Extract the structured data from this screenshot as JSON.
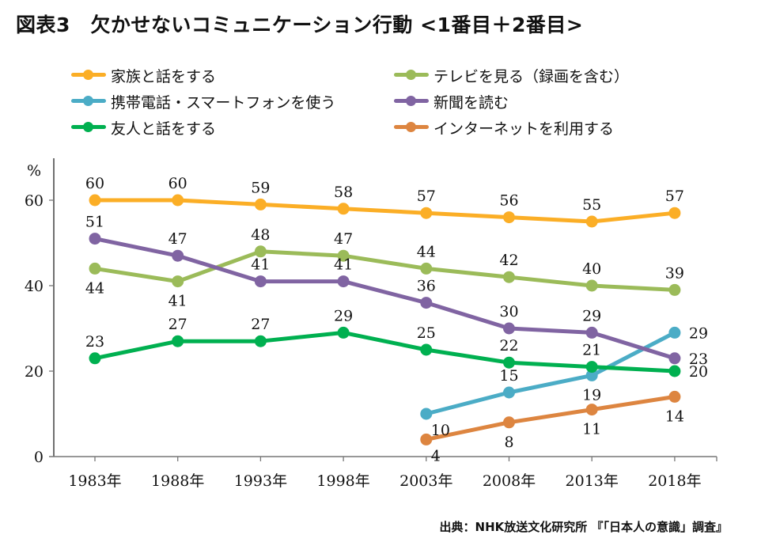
{
  "title": "図表3　欠かせないコミュニケーション行動 <1番目＋2番目>",
  "source": "出典：NHK放送文化研究所 『「日本人の意識」調査』",
  "chart_data": {
    "type": "line",
    "title": "図表3　欠かせないコミュニケーション行動 <1番目＋2番目>",
    "xlabel": "",
    "ylabel": "%",
    "x": [
      "1983年",
      "1988年",
      "1993年",
      "1998年",
      "2003年",
      "2008年",
      "2013年",
      "2018年"
    ],
    "ylim": [
      0,
      70
    ],
    "yticks": [
      0,
      20,
      40,
      60
    ],
    "ytick_labels": [
      "0",
      "20",
      "40",
      "60"
    ],
    "grid": false,
    "legend_position": "top",
    "series": [
      {
        "name": "家族と話をする",
        "color": "#FBAE26",
        "values": [
          60,
          60,
          59,
          58,
          57,
          56,
          55,
          57
        ],
        "label_pos": [
          "above",
          "above",
          "above",
          "above",
          "above",
          "above",
          "above",
          "above"
        ]
      },
      {
        "name": "テレビを見る（録画を含む）",
        "color": "#9BBB59",
        "values": [
          44,
          41,
          48,
          47,
          44,
          42,
          40,
          39
        ],
        "label_pos": [
          "below",
          "below",
          "above",
          "above",
          "above",
          "above",
          "above",
          "above"
        ]
      },
      {
        "name": "携帯電話・スマートフォンを使う",
        "color": "#4BACC6",
        "values": [
          null,
          null,
          null,
          null,
          10,
          15,
          19,
          29
        ],
        "label_pos": [
          "",
          "",
          "",
          "",
          "belowright",
          "above",
          "below",
          "right"
        ]
      },
      {
        "name": "新聞を読む",
        "color": "#8064A2",
        "values": [
          51,
          47,
          41,
          41,
          36,
          30,
          29,
          23
        ],
        "label_pos": [
          "above",
          "above",
          "above",
          "above",
          "above",
          "above",
          "above",
          "right"
        ]
      },
      {
        "name": "友人と話をする",
        "color": "#00B050",
        "values": [
          23,
          27,
          27,
          29,
          25,
          22,
          21,
          20
        ],
        "label_pos": [
          "above",
          "above",
          "above",
          "above",
          "above",
          "above",
          "above",
          "right"
        ]
      },
      {
        "name": "インターネットを利用する",
        "color": "#DD8540",
        "values": [
          null,
          null,
          null,
          null,
          4,
          8,
          11,
          14
        ],
        "label_pos": [
          "",
          "",
          "",
          "",
          "belowright",
          "below",
          "below",
          "below"
        ]
      }
    ]
  },
  "legend": {
    "items": [
      {
        "label": "家族と話をする",
        "color": "#FBAE26"
      },
      {
        "label": "テレビを見る（録画を含む）",
        "color": "#9BBB59"
      },
      {
        "label": "携帯電話・スマートフォンを使う",
        "color": "#4BACC6"
      },
      {
        "label": "新聞を読む",
        "color": "#8064A2"
      },
      {
        "label": "友人と話をする",
        "color": "#00B050"
      },
      {
        "label": "インターネットを利用する",
        "color": "#DD8540"
      }
    ]
  }
}
